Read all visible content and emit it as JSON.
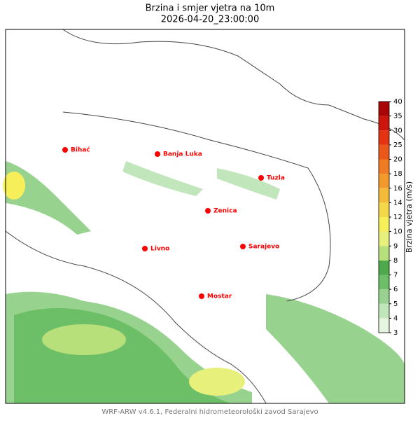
{
  "header": {
    "title": "Brzina i smjer vjetra na 10m",
    "subtitle": "2026-04-20_23:00:00"
  },
  "map": {
    "cities": [
      "Bihać",
      "Banja Luka",
      "Tuzla",
      "Zenica",
      "Livno",
      "Sarajevo",
      "Mostar"
    ],
    "city_color": "#ff0000"
  },
  "colorbar": {
    "label": "Brzina vjetra (m/s)",
    "ticks": [
      3,
      4,
      5,
      6,
      7,
      8,
      9,
      10,
      12,
      14,
      16,
      18,
      20,
      25,
      30,
      35,
      40
    ],
    "colors": [
      "#e5f5e0",
      "#c2e6bb",
      "#98d28f",
      "#6cbf66",
      "#4fa84b",
      "#b8e07a",
      "#e8f07c",
      "#f6ef5a",
      "#f5d84a",
      "#f4bb3a",
      "#f29b2c",
      "#ef7b22",
      "#ea571a",
      "#e33313",
      "#cc150c",
      "#a80606"
    ]
  },
  "footer": "WRF-ARW v4.6.1, Federalni hidrometeorološki zavod Sarajevo"
}
